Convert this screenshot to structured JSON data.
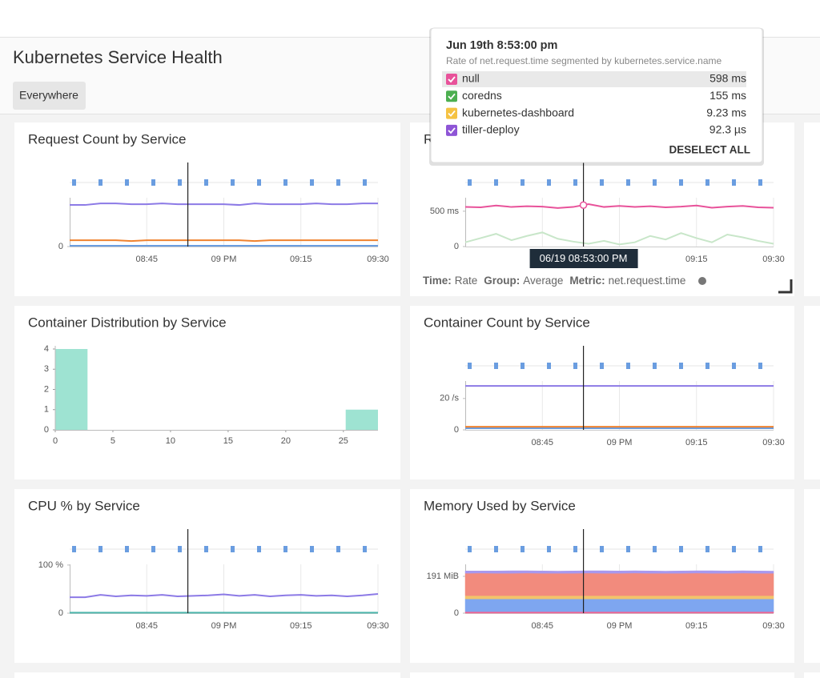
{
  "header": {
    "title": "Kubernetes Service Health",
    "filter": "Everywhere"
  },
  "time_axis": {
    "x": [
      30,
      33,
      36,
      39,
      42,
      45,
      48,
      51,
      54,
      57,
      60,
      63,
      66,
      69,
      72,
      75,
      78,
      81,
      84,
      87,
      90
    ],
    "xlim": [
      30,
      90
    ],
    "cursor": 53,
    "xticks": [
      {
        "value": 45,
        "label": "08:45"
      },
      {
        "value": 60,
        "label": "09 PM"
      },
      {
        "value": 75,
        "label": "09:15"
      },
      {
        "value": 90,
        "label": "09:30"
      }
    ]
  },
  "panels": [
    {
      "title": "Request Count by Service",
      "chart": {
        "type": "line",
        "ylim": [
          0,
          100
        ],
        "yticks": [
          0
        ],
        "series": [
          {
            "color": "#8c7ae6",
            "values": [
              53,
              53,
              55,
              55,
              54,
              54,
              55,
              54,
              54,
              54,
              54,
              53,
              55,
              54,
              54,
              54,
              55,
              54,
              54,
              55,
              55
            ]
          },
          {
            "color": "#f0822e",
            "values": [
              8,
              8,
              8,
              8,
              7,
              8,
              8,
              8,
              8,
              8,
              8,
              8,
              7,
              8,
              8,
              8,
              8,
              8,
              8,
              8,
              8
            ]
          },
          {
            "color": "#6a9de0",
            "values": [
              1,
              1,
              1,
              1,
              1,
              1,
              1,
              1,
              1,
              1,
              1,
              1,
              1,
              1,
              1,
              1,
              1,
              1,
              1,
              1,
              1
            ]
          }
        ]
      }
    },
    {
      "title": "Request Latency by Service",
      "chart": {
        "type": "line",
        "ylim": [
          0,
          1110
        ],
        "yticks": [
          0,
          {
            "value": 500,
            "label": "500 ms"
          }
        ],
        "time_label": "06/19 08:53:00 PM",
        "series": [
          {
            "color": "#e8529a",
            "values": [
              560,
              555,
              580,
              560,
              570,
              565,
              545,
              560,
              600,
              560,
              575,
              560,
              570,
              555,
              565,
              580,
              550,
              565,
              575,
              555,
              550
            ]
          },
          {
            "color": "#c8e6c9",
            "values": [
              60,
              120,
              180,
              90,
              150,
              200,
              110,
              70,
              40,
              80,
              30,
              60,
              150,
              100,
              190,
              120,
              60,
              170,
              130,
              80,
              40
            ]
          }
        ]
      },
      "footer": [
        {
          "label": "Time:",
          "value": "Rate"
        },
        {
          "label": "Group:",
          "value": "Average"
        },
        {
          "label": "Metric:",
          "value": "net.request.time"
        }
      ]
    },
    {
      "title": "Container Distribution by Service",
      "chart": {
        "type": "histogram",
        "color": "#9ee3d2",
        "bins": [
          0,
          2.8,
          5.6,
          8.4,
          11.2,
          14,
          16.8,
          19.6,
          22.4,
          25.2,
          28
        ],
        "values": [
          4,
          0,
          0,
          0,
          0,
          0,
          0,
          0,
          0,
          1
        ],
        "xlim": [
          0,
          28
        ],
        "xticks": [
          0,
          5,
          10,
          15,
          20,
          25
        ],
        "ylim": [
          0,
          4
        ],
        "yticks": [
          0,
          1,
          2,
          3,
          4
        ]
      }
    },
    {
      "title": "Container Count by Service",
      "chart": {
        "type": "line",
        "ylim": [
          0,
          50
        ],
        "yticks": [
          0,
          {
            "value": 20,
            "label": "20 /s"
          }
        ],
        "series": [
          {
            "color": "#8c7ae6",
            "values": [
              28,
              28,
              28,
              28,
              28,
              28,
              28,
              28,
              28,
              28,
              28,
              28,
              28,
              28,
              28,
              28,
              28,
              28,
              28,
              28,
              28
            ]
          },
          {
            "color": "#f0822e",
            "values": [
              2,
              2,
              2,
              2,
              2,
              2,
              2,
              2,
              2,
              2,
              2,
              2,
              2,
              2,
              2,
              2,
              2,
              2,
              2,
              2,
              2
            ]
          },
          {
            "color": "#6a9de0",
            "values": [
              1,
              1,
              1,
              1,
              1,
              1,
              1,
              1,
              1,
              1,
              1,
              1,
              1,
              1,
              1,
              1,
              1,
              1,
              1,
              1,
              1
            ]
          }
        ]
      }
    },
    {
      "title": "CPU % by Service",
      "chart": {
        "type": "line",
        "ylim": [
          0,
          163
        ],
        "yticks": [
          0,
          {
            "value": 100,
            "label": "100 %"
          }
        ],
        "series": [
          {
            "color": "#8c7ae6",
            "values": [
              33,
              33,
              38,
              35,
              37,
              36,
              38,
              35,
              36,
              37,
              39,
              36,
              38,
              35,
              37,
              38,
              36,
              37,
              35,
              37,
              40
            ]
          },
          {
            "color": "#4db6ac",
            "values": [
              1,
              1,
              1,
              1,
              1,
              1,
              1,
              1,
              1,
              1,
              1,
              1,
              1,
              1,
              1,
              1,
              1,
              1,
              1,
              1,
              1
            ]
          }
        ]
      }
    },
    {
      "title": "Memory Used by Service",
      "chart": {
        "type": "area",
        "ylim": [
          0,
          407
        ],
        "yticks": [
          0,
          {
            "value": 191,
            "label": "191 MiB"
          }
        ],
        "series": [
          {
            "color": "#f06292",
            "values": [
              8,
              8,
              8,
              8,
              8,
              8,
              8,
              8,
              8,
              8,
              8,
              8,
              8,
              8,
              8,
              8,
              8,
              8,
              8,
              8,
              8
            ]
          },
          {
            "color": "#7ea6f0",
            "values": [
              66,
              66,
              66,
              66,
              66,
              66,
              66,
              66,
              66,
              66,
              66,
              66,
              66,
              66,
              66,
              66,
              66,
              66,
              66,
              66,
              66
            ]
          },
          {
            "color": "#f3c36b",
            "values": [
              17,
              17,
              17,
              17,
              17,
              17,
              17,
              17,
              17,
              17,
              17,
              17,
              17,
              17,
              17,
              17,
              17,
              17,
              17,
              17,
              17
            ]
          },
          {
            "color": "#f28b7d",
            "values": [
              116,
              117,
              116,
              116,
              117,
              116,
              116,
              116,
              117,
              116,
              116,
              117,
              116,
              116,
              116,
              117,
              116,
              116,
              117,
              116,
              116
            ]
          },
          {
            "color": "#a898ee",
            "values": [
              12,
              11,
              12,
              13,
              12,
              12,
              11,
              12,
              12,
              13,
              12,
              12,
              12,
              11,
              12,
              12,
              13,
              12,
              12,
              12,
              11
            ]
          }
        ]
      }
    }
  ],
  "tooltip": {
    "title": "Jun 19th 8:53:00 pm",
    "subtitle": "Rate of net.request.time segmented by kubernetes.service.name",
    "rows": [
      {
        "name": "null",
        "value": "598 ms",
        "color": "#e8529a"
      },
      {
        "name": "coredns",
        "value": "155 ms",
        "color": "#4caf50"
      },
      {
        "name": "kubernetes-dashboard",
        "value": "9.23 ms",
        "color": "#f5c242"
      },
      {
        "name": "tiller-deploy",
        "value": "92.3 µs",
        "color": "#8e55d6"
      }
    ],
    "action": "DESELECT ALL"
  }
}
